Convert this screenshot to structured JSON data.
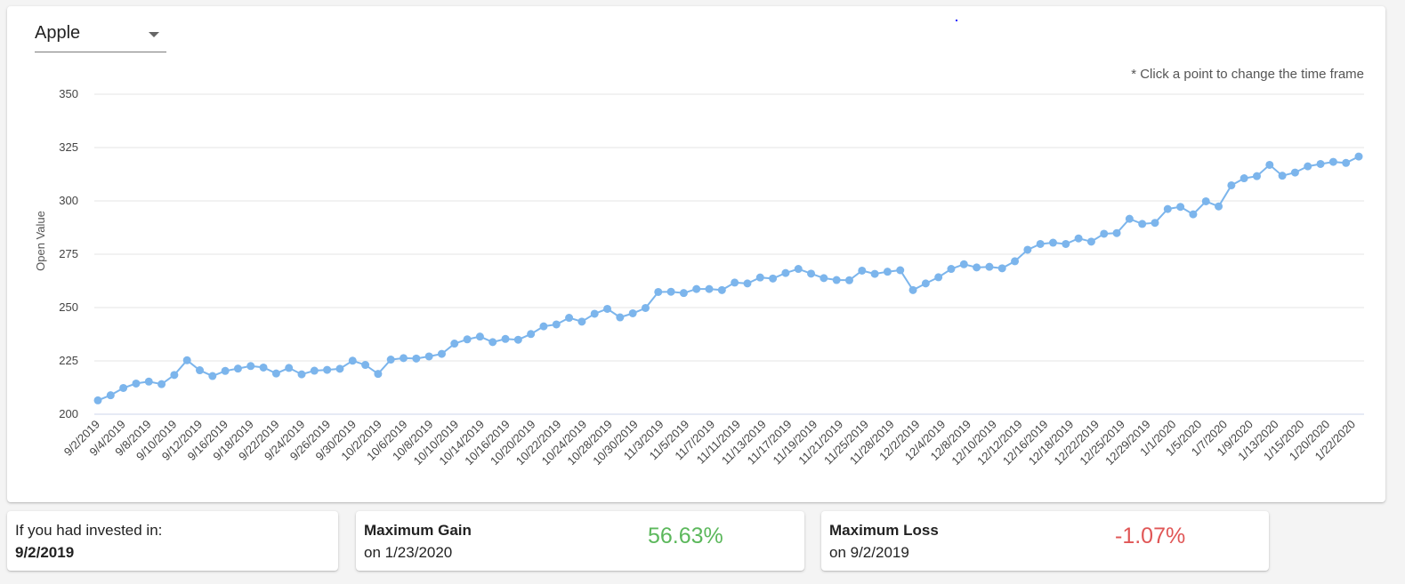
{
  "selector": {
    "value": "Apple"
  },
  "hint": "* Click a point to change the time frame",
  "chart_data": {
    "type": "line",
    "ylabel": "Open Value",
    "ylim": [
      200,
      350
    ],
    "yticks": [
      200,
      225,
      250,
      275,
      300,
      325,
      350
    ],
    "grid": true,
    "color": "#7cb5ec",
    "x_tick_labels": [
      "9/2/2019",
      "9/4/2019",
      "9/8/2019",
      "9/10/2019",
      "9/12/2019",
      "9/16/2019",
      "9/18/2019",
      "9/22/2019",
      "9/24/2019",
      "9/26/2019",
      "9/30/2019",
      "10/2/2019",
      "10/6/2019",
      "10/8/2019",
      "10/10/2019",
      "10/14/2019",
      "10/16/2019",
      "10/20/2019",
      "10/22/2019",
      "10/24/2019",
      "10/28/2019",
      "10/30/2019",
      "11/3/2019",
      "11/5/2019",
      "11/7/2019",
      "11/11/2019",
      "11/13/2019",
      "11/17/2019",
      "11/19/2019",
      "11/21/2019",
      "11/25/2019",
      "11/28/2019",
      "12/2/2019",
      "12/4/2019",
      "12/8/2019",
      "12/10/2019",
      "12/12/2019",
      "12/16/2019",
      "12/18/2019",
      "12/22/2019",
      "12/25/2019",
      "12/29/2019",
      "1/1/2020",
      "1/5/2020",
      "1/7/2020",
      "1/9/2020",
      "1/13/2020",
      "1/15/2020",
      "1/20/2020",
      "1/22/2020"
    ],
    "values": [
      206.5,
      208.9,
      212.3,
      214.4,
      215.3,
      214.1,
      218.4,
      225.3,
      220.6,
      217.9,
      220.3,
      221.4,
      222.6,
      221.9,
      219.1,
      221.7,
      218.7,
      220.4,
      220.8,
      221.3,
      225.1,
      223.1,
      218.9,
      225.6,
      226.3,
      226.1,
      227.1,
      228.3,
      233.1,
      235.1,
      236.4,
      233.8,
      235.3,
      234.9,
      237.6,
      241.2,
      242.1,
      245.2,
      243.4,
      247.1,
      249.4,
      245.4,
      247.3,
      249.8,
      257.3,
      257.4,
      256.8,
      258.7,
      258.7,
      258.2,
      261.7,
      261.3,
      264.1,
      263.6,
      266.2,
      268.1,
      265.9,
      263.8,
      262.9,
      262.8,
      267.3,
      265.8,
      266.8,
      267.5,
      258.2,
      261.3,
      264.2,
      268.1,
      270.3,
      268.8,
      269.1,
      268.4,
      271.7,
      277.1,
      279.8,
      280.4,
      279.8,
      282.4,
      280.9,
      284.6,
      284.9,
      291.6,
      289.2,
      289.7,
      296.2,
      297.2,
      293.7,
      299.8,
      297.4,
      307.3,
      310.6,
      311.6,
      316.9,
      311.8,
      313.3,
      316.2,
      317.3,
      318.3,
      317.8,
      320.8
    ]
  },
  "invested": {
    "label": "If you had invested in:",
    "date": "9/2/2019"
  },
  "gain": {
    "title": "Maximum Gain",
    "on": "on 1/23/2020",
    "value": "56.63%"
  },
  "loss": {
    "title": "Maximum Loss",
    "on": "on 9/2/2019",
    "value": "-1.07%"
  }
}
